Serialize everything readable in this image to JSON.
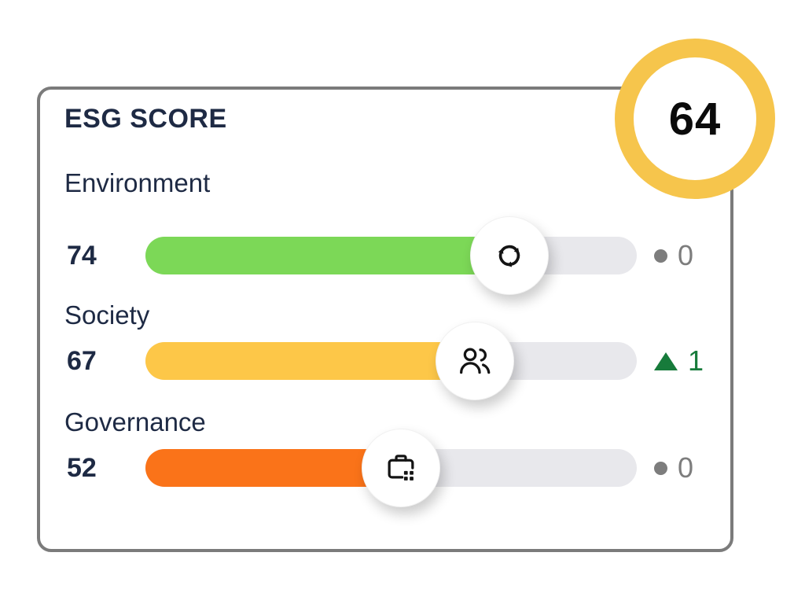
{
  "card": {
    "title": "ESG SCORE"
  },
  "badge": {
    "score": "64",
    "ring_color": "#F6C54C"
  },
  "rows": [
    {
      "label": "Environment",
      "value": "74",
      "bar_color": "#7CD857",
      "icon": "recycle-icon",
      "delta": {
        "symbol": "dot",
        "value": "0",
        "color": "#7D7D7D"
      }
    },
    {
      "label": "Society",
      "value": "67",
      "bar_color": "#FDC748",
      "icon": "people-icon",
      "delta": {
        "symbol": "triangle-up",
        "value": "1",
        "color": "#177B3B"
      }
    },
    {
      "label": "Governance",
      "value": "52",
      "bar_color": "#FA7319",
      "icon": "briefcase-icon",
      "delta": {
        "symbol": "dot",
        "value": "0",
        "color": "#7D7D7D"
      }
    }
  ],
  "colors": {
    "text_navy": "#1E2A44",
    "track": "#E8E8EC",
    "card_border": "#7B7B7B",
    "icon_stroke": "#141414"
  },
  "chart_data": {
    "type": "bar",
    "title": "ESG SCORE",
    "overall_score": 64,
    "categories": [
      "Environment",
      "Society",
      "Governance"
    ],
    "values": [
      74,
      67,
      52
    ],
    "deltas": [
      0,
      1,
      0
    ],
    "delta_directions": [
      "flat",
      "up",
      "flat"
    ],
    "bar_colors": [
      "#7CD857",
      "#FDC748",
      "#FA7319"
    ],
    "range": [
      0,
      100
    ],
    "orientation": "horizontal",
    "grid": false,
    "legend_position": "none"
  }
}
